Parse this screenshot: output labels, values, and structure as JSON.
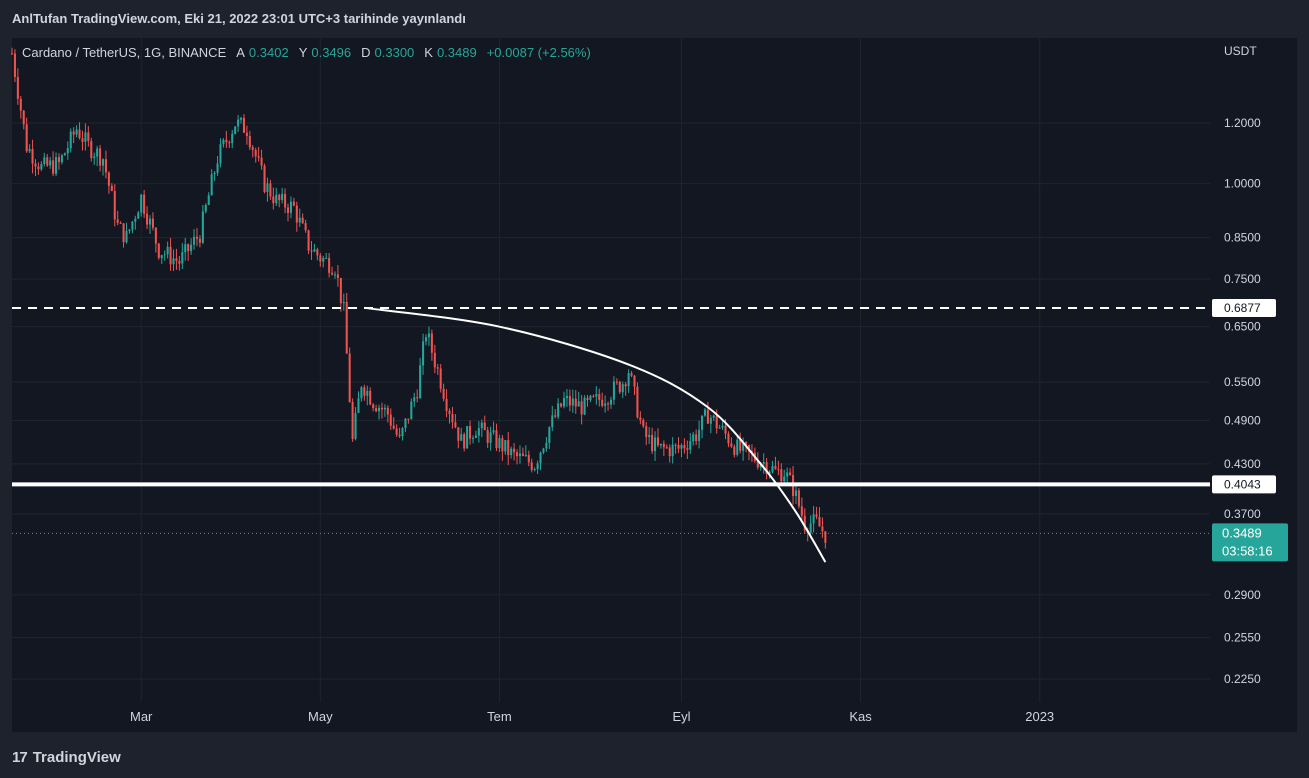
{
  "header": {
    "title": "AnlTufan TradingView.com, Eki 21, 2022 23:01 UTC+3 tarihinde yayınlandı"
  },
  "legend": {
    "symbol": "Cardano / TetherUS, 1G, BINANCE",
    "open_label": "A",
    "open": "0.3402",
    "high_label": "Y",
    "high": "0.3496",
    "low_label": "D",
    "low": "0.3300",
    "close_label": "K",
    "close": "0.3489",
    "change": "+0.0087 (+2.56%)"
  },
  "price_axis": {
    "currency": "USDT",
    "ticks": [
      "1.2000",
      "1.0000",
      "0.8500",
      "0.7500",
      "0.6500",
      "0.5500",
      "0.4900",
      "0.4300",
      "0.3700",
      "0.2900",
      "0.2550",
      "0.2250"
    ]
  },
  "time_axis": {
    "ticks": [
      "Mar",
      "May",
      "Tem",
      "Eyl",
      "Kas",
      "2023"
    ]
  },
  "footer": {
    "brand": "TradingView",
    "logo": "17"
  },
  "colors": {
    "up": "#26a69a",
    "down": "#ef5350",
    "background": "#131722",
    "line": "#ffffff"
  },
  "chart_data": {
    "type": "candlestick",
    "symbol": "ADA/USDT",
    "timeframe": "1D",
    "y_scale": "log",
    "ylim": [
      0.21,
      1.55
    ],
    "x_range": [
      "2022-01-16",
      "2023-02-28"
    ],
    "current_price": "0.3489",
    "countdown": "03:58:16",
    "horizontal_lines": [
      {
        "value": "0.6877",
        "style": "dashed"
      },
      {
        "value": "0.4043",
        "style": "solid"
      }
    ],
    "curve": [
      [
        "2022-05-16",
        0.688
      ],
      [
        "2022-07-01",
        0.65
      ],
      [
        "2022-08-14",
        0.58
      ],
      [
        "2022-09-10",
        0.51
      ],
      [
        "2022-09-28",
        0.43
      ],
      [
        "2022-10-10",
        0.372
      ],
      [
        "2022-10-20",
        0.32
      ]
    ],
    "price_path": [
      [
        "2022-01-16",
        1.48
      ],
      [
        "2022-01-21",
        1.12
      ],
      [
        "2022-01-26",
        1.05
      ],
      [
        "2022-02-01",
        1.06
      ],
      [
        "2022-02-07",
        1.18
      ],
      [
        "2022-02-11",
        1.12
      ],
      [
        "2022-02-16",
        1.08
      ],
      [
        "2022-02-21",
        0.88
      ],
      [
        "2022-02-24",
        0.85
      ],
      [
        "2022-03-01",
        0.96
      ],
      [
        "2022-03-07",
        0.82
      ],
      [
        "2022-03-14",
        0.79
      ],
      [
        "2022-03-21",
        0.86
      ],
      [
        "2022-03-27",
        1.08
      ],
      [
        "2022-04-02",
        1.2
      ],
      [
        "2022-04-06",
        1.18
      ],
      [
        "2022-04-12",
        1.0
      ],
      [
        "2022-04-16",
        0.95
      ],
      [
        "2022-04-22",
        0.93
      ],
      [
        "2022-04-27",
        0.83
      ],
      [
        "2022-05-01",
        0.8
      ],
      [
        "2022-05-06",
        0.78
      ],
      [
        "2022-05-09",
        0.68
      ],
      [
        "2022-05-12",
        0.46
      ],
      [
        "2022-05-15",
        0.55
      ],
      [
        "2022-05-19",
        0.52
      ],
      [
        "2022-05-24",
        0.5
      ],
      [
        "2022-05-28",
        0.46
      ],
      [
        "2022-06-03",
        0.54
      ],
      [
        "2022-06-06",
        0.64
      ],
      [
        "2022-06-10",
        0.57
      ],
      [
        "2022-06-13",
        0.52
      ],
      [
        "2022-06-18",
        0.46
      ],
      [
        "2022-06-23",
        0.48
      ],
      [
        "2022-06-30",
        0.46
      ],
      [
        "2022-07-06",
        0.44
      ],
      [
        "2022-07-13",
        0.43
      ],
      [
        "2022-07-18",
        0.48
      ],
      [
        "2022-07-23",
        0.52
      ],
      [
        "2022-07-30",
        0.51
      ],
      [
        "2022-08-07",
        0.53
      ],
      [
        "2022-08-12",
        0.55
      ],
      [
        "2022-08-14",
        0.57
      ],
      [
        "2022-08-19",
        0.47
      ],
      [
        "2022-08-24",
        0.45
      ],
      [
        "2022-08-31",
        0.45
      ],
      [
        "2022-09-06",
        0.47
      ],
      [
        "2022-09-10",
        0.5
      ],
      [
        "2022-09-14",
        0.48
      ],
      [
        "2022-09-20",
        0.45
      ],
      [
        "2022-09-25",
        0.44
      ],
      [
        "2022-09-30",
        0.43
      ],
      [
        "2022-10-03",
        0.42
      ],
      [
        "2022-10-06",
        0.42
      ],
      [
        "2022-10-09",
        0.4
      ],
      [
        "2022-10-13",
        0.36
      ],
      [
        "2022-10-17",
        0.36
      ],
      [
        "2022-10-20",
        0.348
      ]
    ]
  }
}
